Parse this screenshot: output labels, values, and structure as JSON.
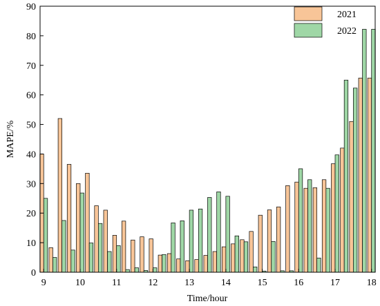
{
  "chart_data": {
    "type": "bar",
    "title": "",
    "xlabel": "Time/hour",
    "ylabel": "MAPE/%",
    "xlim": [
      8.9,
      18.1
    ],
    "ylim": [
      0,
      90
    ],
    "x_ticks": [
      "9",
      "10",
      "11",
      "12",
      "13",
      "14",
      "15",
      "16",
      "17",
      "18"
    ],
    "y_ticks": [
      "0",
      "10",
      "20",
      "30",
      "40",
      "50",
      "60",
      "70",
      "80",
      "90"
    ],
    "grid": false,
    "legend_position": "top-right",
    "x": [
      9.0,
      9.25,
      9.5,
      9.75,
      10.0,
      10.25,
      10.5,
      10.75,
      11.0,
      11.25,
      11.5,
      11.75,
      12.0,
      12.25,
      12.5,
      12.75,
      13.0,
      13.25,
      13.5,
      13.75,
      14.0,
      14.25,
      14.5,
      14.75,
      15.0,
      15.25,
      15.5,
      15.75,
      16.0,
      16.25,
      16.5,
      16.75,
      17.0,
      17.25,
      17.5,
      17.75,
      18.0
    ],
    "series": [
      {
        "name": "2021",
        "color": "#f8c598",
        "values": [
          40,
          8.3,
          52,
          36.5,
          30,
          33.5,
          22.5,
          21,
          12.5,
          17.3,
          10.9,
          12,
          11.3,
          5.8,
          6.3,
          4.5,
          3.9,
          4.3,
          5.7,
          7,
          8.6,
          9.6,
          11,
          13.8,
          19.3,
          21.1,
          22.1,
          29.3,
          30.5,
          28.4,
          28.6,
          31.3,
          36.7,
          42,
          51,
          65.7,
          65.7
        ]
      },
      {
        "name": "2022",
        "color": "#9fd7a6",
        "values": [
          25,
          5,
          17.5,
          7.5,
          26.8,
          9.9,
          16.5,
          7,
          9,
          0.9,
          1.5,
          0.6,
          1.5,
          6,
          16.7,
          17.4,
          21,
          21.4,
          25.3,
          27.2,
          25.7,
          12.3,
          10.3,
          1.8,
          0.4,
          10.4,
          0.5,
          0.5,
          35,
          31.3,
          4.8,
          28.4,
          39.7,
          65,
          62.3,
          82.2,
          82.2
        ]
      }
    ]
  }
}
